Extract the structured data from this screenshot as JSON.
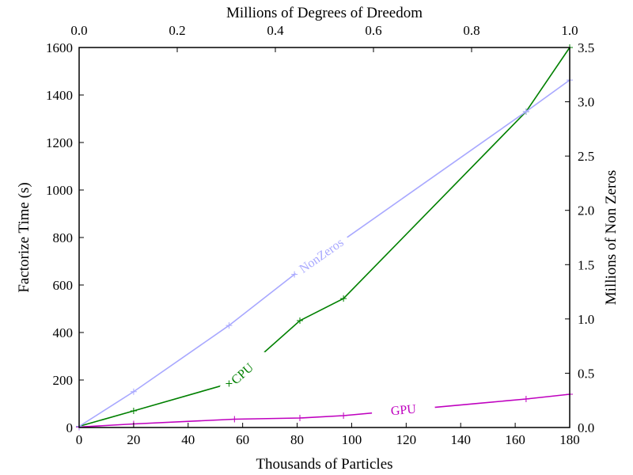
{
  "chart_data": {
    "type": "line",
    "xlabel": "Thousands of Particles",
    "ylabel": "Factorize Time (s)",
    "xlim": [
      0,
      180
    ],
    "ylim": [
      0,
      1600
    ],
    "xticks": [
      0,
      20,
      40,
      60,
      80,
      100,
      120,
      140,
      160,
      180
    ],
    "yticks": [
      0,
      200,
      400,
      600,
      800,
      1000,
      1200,
      1400,
      1600
    ],
    "top_axis": {
      "label": "Millions of Degrees of Dreedom",
      "lim": [
        0.0,
        1.0
      ],
      "ticks": [
        0.0,
        0.2,
        0.4,
        0.6,
        0.8,
        1.0
      ]
    },
    "right_axis": {
      "label": "Millions of Non Zeros",
      "lim": [
        0.0,
        3.5
      ],
      "ticks": [
        0.0,
        0.5,
        1.0,
        1.5,
        2.0,
        2.5,
        3.0,
        3.5
      ]
    },
    "grid": false,
    "legend": "none",
    "series": [
      {
        "name": "CPU",
        "axis": "left",
        "color": "#008000",
        "x": [
          0,
          20,
          55,
          81,
          97,
          164,
          180
        ],
        "y": [
          5,
          70,
          185,
          450,
          543,
          1330,
          1600
        ],
        "label_pos": [
          60,
          225
        ]
      },
      {
        "name": "GPU",
        "axis": "left",
        "color": "#bf00bf",
        "x": [
          0,
          20,
          57,
          81,
          97,
          164,
          180
        ],
        "y": [
          2,
          15,
          35,
          40,
          50,
          120,
          140
        ],
        "label_pos": [
          119,
          72
        ]
      },
      {
        "name": "NonZeros",
        "axis": "right",
        "color": "#a8a8ff",
        "x": [
          0,
          20,
          55,
          79,
          164,
          180
        ],
        "y": [
          0.01,
          0.33,
          0.94,
          1.41,
          2.91,
          3.2
        ],
        "label_pos": [
          89,
          1.58
        ]
      }
    ]
  }
}
